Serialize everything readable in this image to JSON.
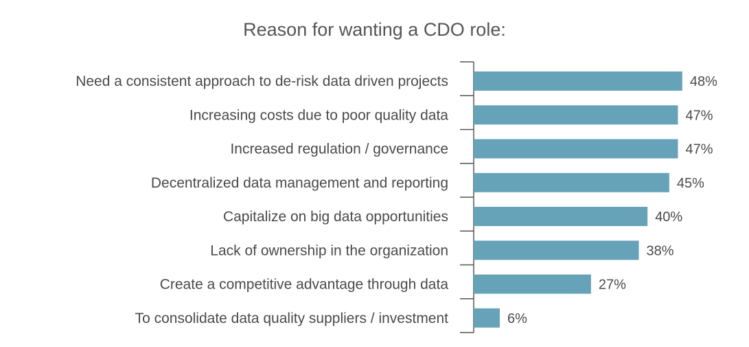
{
  "chart_data": {
    "type": "bar",
    "orientation": "horizontal",
    "title": "Reason for wanting a CDO role:",
    "categories": [
      "Need a consistent approach to de-risk data driven projects",
      "Increasing costs due to poor quality data",
      "Increased regulation / governance",
      "Decentralized data management and reporting",
      "Capitalize on big data opportunities",
      "Lack of ownership in the organization",
      "Create a competitive advantage through data",
      "To consolidate data quality suppliers / investment"
    ],
    "values": [
      48,
      47,
      47,
      45,
      40,
      38,
      27,
      6
    ],
    "value_labels": [
      "48%",
      "47%",
      "47%",
      "45%",
      "40%",
      "38%",
      "27%",
      "6%"
    ],
    "unit": "%",
    "xlim": [
      0,
      50
    ],
    "grid": false,
    "bar_color": "#67a3b8"
  }
}
